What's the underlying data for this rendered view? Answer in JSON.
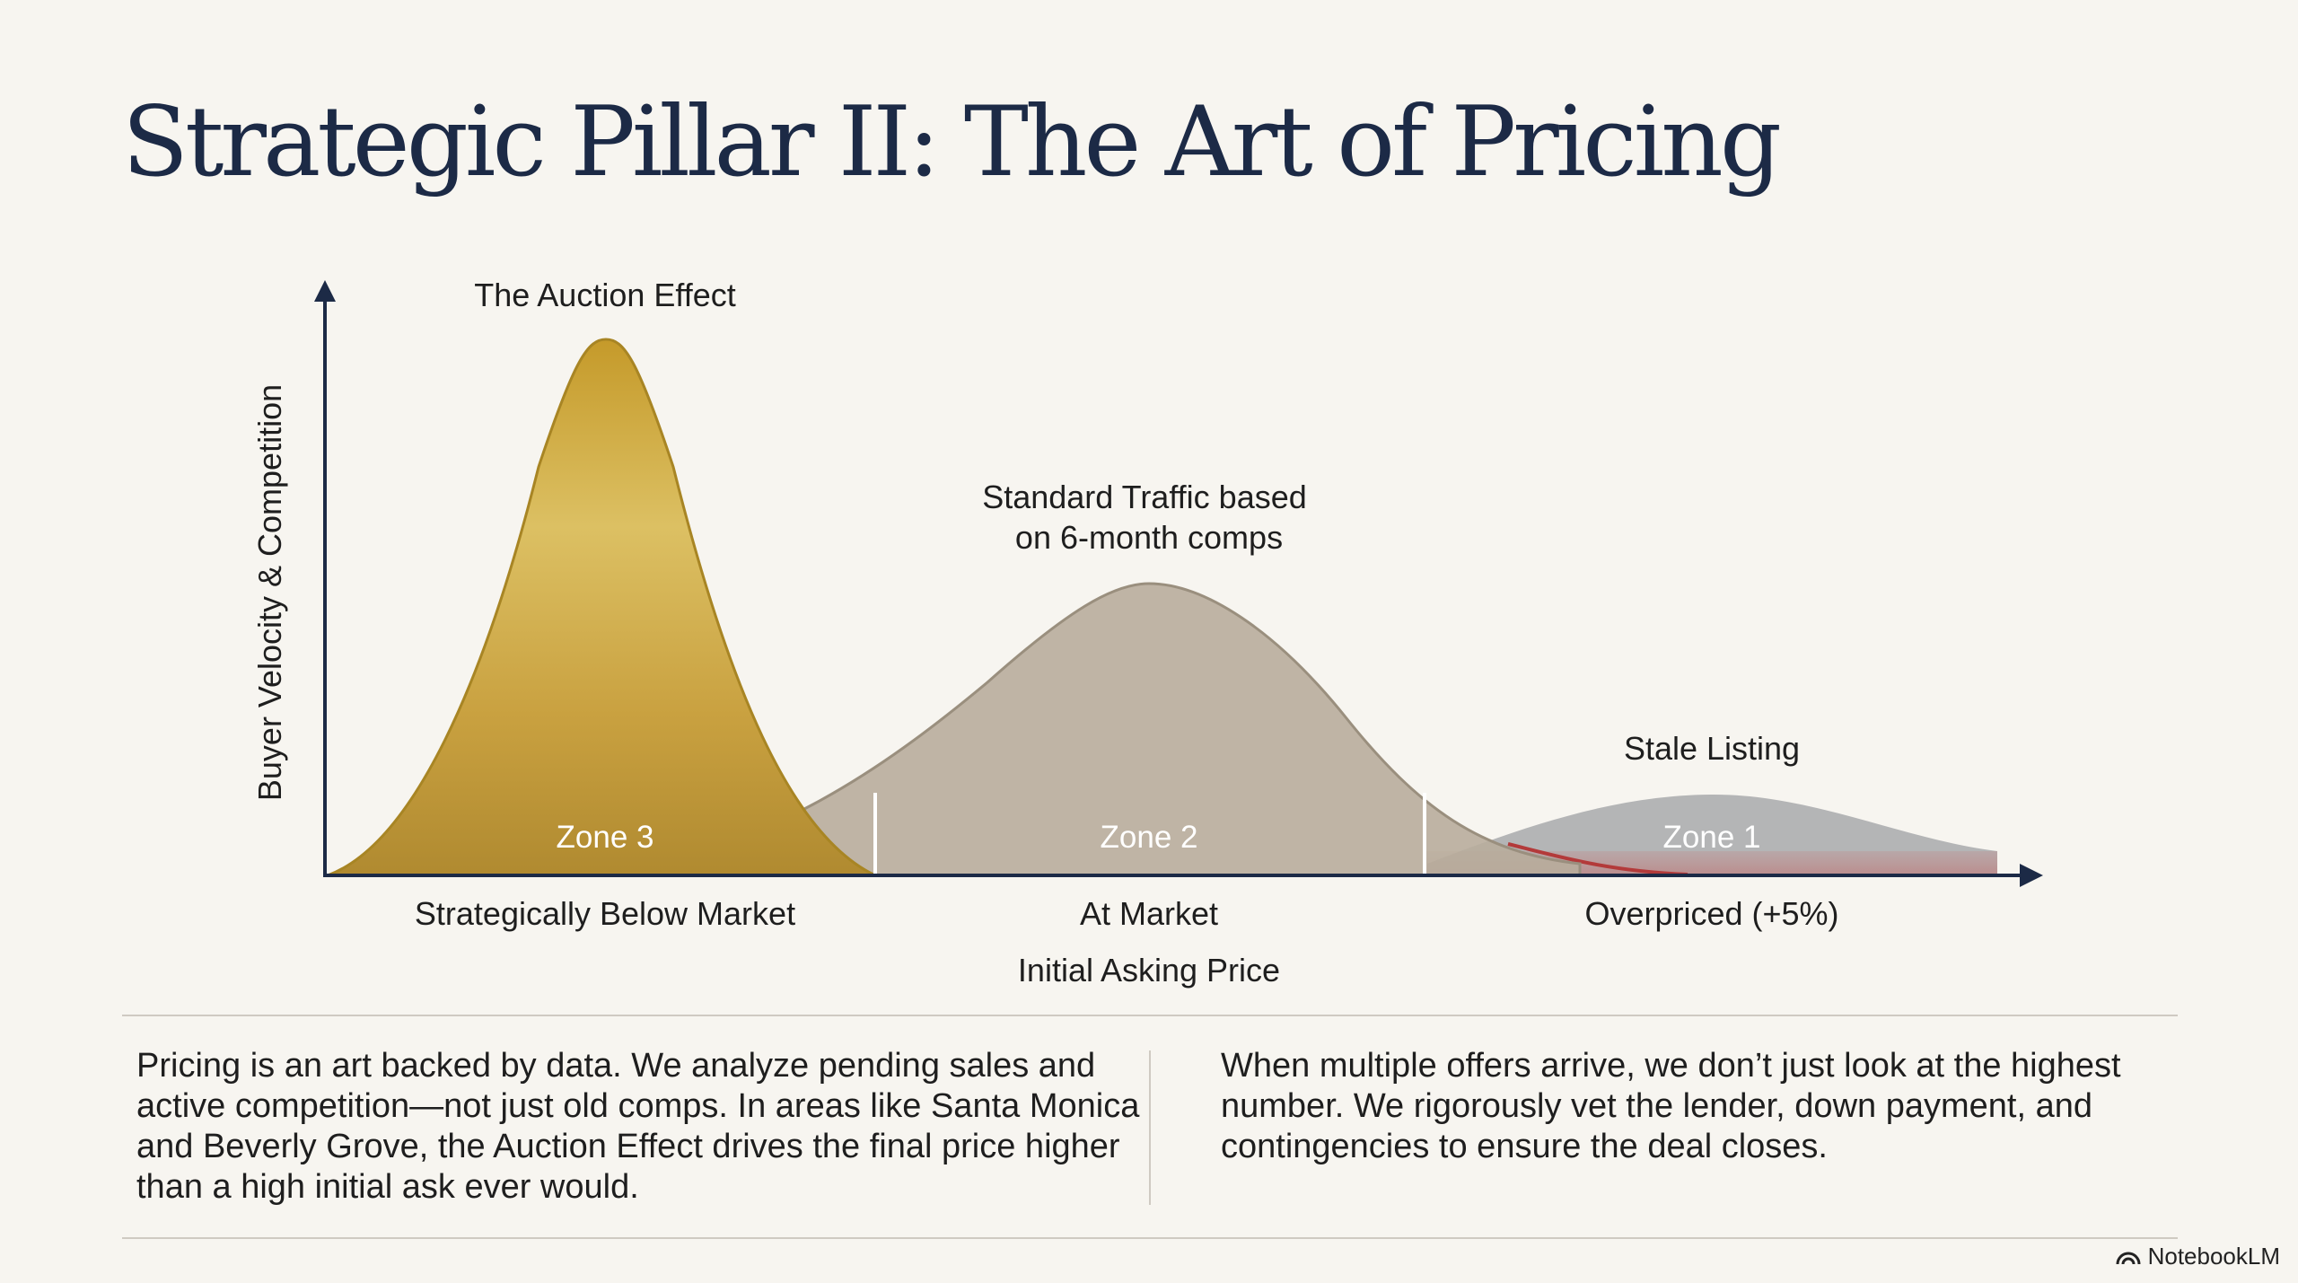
{
  "title": "Strategic Pillar II: The Art of Pricing",
  "chart_data": {
    "type": "area",
    "ylabel": "Buyer Velocity & Competition",
    "xlabel": "Initial Asking Price",
    "categories": [
      "Strategically Below Market",
      "At Market",
      "Overpriced (+5%)"
    ],
    "zones": [
      "Zone 3",
      "Zone 2",
      "Zone 1"
    ],
    "curves": [
      {
        "label": "The Auction Effect",
        "zone": "Zone 3",
        "relative_peak": 1.0,
        "color": "#c9a53a"
      },
      {
        "label": "Standard Traffic based on 6-month comps",
        "zone": "Zone 2",
        "relative_peak": 0.54,
        "color": "#b5aa9a"
      },
      {
        "label": "Stale Listing",
        "zone": "Zone 1",
        "relative_peak": 0.15,
        "color": "#9a9a9c"
      }
    ]
  },
  "body": {
    "left": "Pricing is an art backed by data. We analyze pending sales and active competition—not just old comps. In areas like Santa Monica and Beverly Grove, the Auction Effect drives the final price higher than a high initial ask ever would.",
    "right": "When multiple offers arrive, we don’t just look at the highest number. We rigorously vet the lender, down payment, and contingencies to ensure the deal closes."
  },
  "brand": {
    "name": "NotebookLM",
    "icon": "notebooklm-logo-icon"
  }
}
